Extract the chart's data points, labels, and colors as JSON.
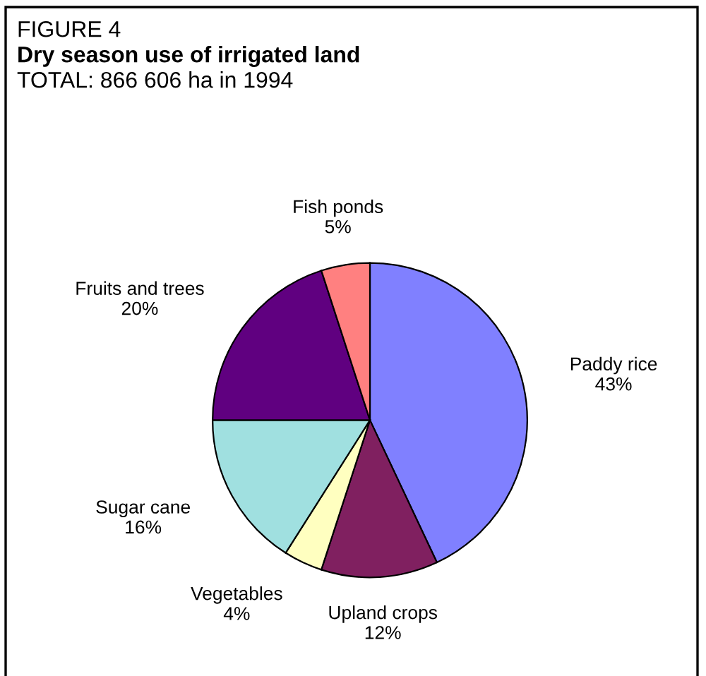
{
  "chart_data": {
    "type": "pie",
    "title": "Dry season use of irrigated land",
    "subtitle": "TOTAL: 866 606 ha in 1994",
    "annotations": [
      "FIGURE 4"
    ],
    "categories": [
      "Paddy rice",
      "Upland crops",
      "Vegetables",
      "Sugar cane",
      "Fruits and trees",
      "Fish ponds"
    ],
    "values": [
      43,
      12,
      4,
      16,
      20,
      5
    ],
    "value_labels": [
      "43%",
      "12%",
      "4%",
      "16%",
      "20%",
      "5%"
    ],
    "colors": [
      "#8080ff",
      "#802060",
      "#ffffc0",
      "#a0e0e0",
      "#600080",
      "#ff8080"
    ],
    "legend": false
  }
}
